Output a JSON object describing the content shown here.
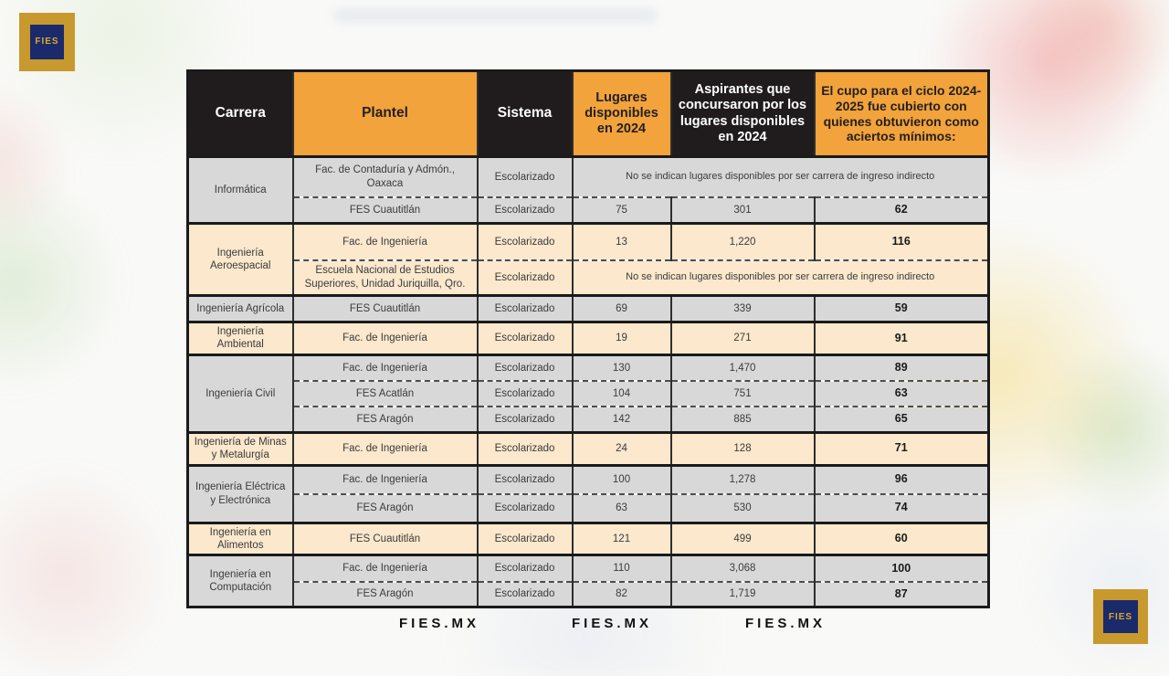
{
  "logo": {
    "text": "FIES"
  },
  "footer": {
    "items": [
      "FIES.MX",
      "FIES.MX",
      "FIES.MX"
    ]
  },
  "colors": {
    "accent_orange": "#F2A33B",
    "header_black": "#201C1D",
    "row_gray": "#D8D8D8",
    "row_cream": "#FBE8CD",
    "logo_gold": "#C8992E",
    "logo_navy": "#1B2A6B"
  },
  "table": {
    "headers": [
      {
        "key": "carrera",
        "label": "Carrera",
        "theme": "dark"
      },
      {
        "key": "plantel",
        "label": "Plantel",
        "theme": "orange"
      },
      {
        "key": "sistema",
        "label": "Sistema",
        "theme": "dark"
      },
      {
        "key": "lugares",
        "label": "Lugares disponibles en 2024",
        "theme": "orange"
      },
      {
        "key": "aspirantes",
        "label": "Aspirantes que concursaron por los lugares disponibles en 2024",
        "theme": "dark"
      },
      {
        "key": "aciertos",
        "label": "El cupo para el ciclo 2024-2025 fue cubierto con quienes obtuvieron como aciertos mínimos:",
        "theme": "orange"
      }
    ],
    "groups": [
      {
        "carrera": "Informática",
        "tone": "gray",
        "rows": [
          {
            "plantel": "Fac. de Contaduría y Admón., Oaxaca",
            "sistema": "Escolarizado",
            "note": "No se indican lugares disponibles por ser carrera de ingreso indirecto"
          },
          {
            "plantel": "FES Cuautitlán",
            "sistema": "Escolarizado",
            "lugares": "75",
            "aspirantes": "301",
            "aciertos": "62"
          }
        ]
      },
      {
        "carrera": "Ingeniería Aeroespacial",
        "tone": "cream",
        "rows": [
          {
            "plantel": "Fac. de Ingeniería",
            "sistema": "Escolarizado",
            "lugares": "13",
            "aspirantes": "1,220",
            "aciertos": "116"
          },
          {
            "plantel": "Escuela Nacional de Estudios Superiores, Unidad Juriquilla, Qro.",
            "sistema": "Escolarizado",
            "note": "No se indican lugares disponibles por ser carrera de ingreso indirecto"
          }
        ]
      },
      {
        "carrera": "Ingeniería Agrícola",
        "tone": "gray",
        "rows": [
          {
            "plantel": "FES Cuautitlán",
            "sistema": "Escolarizado",
            "lugares": "69",
            "aspirantes": "339",
            "aciertos": "59"
          }
        ]
      },
      {
        "carrera": "Ingeniería Ambiental",
        "tone": "cream",
        "rows": [
          {
            "plantel": "Fac. de Ingeniería",
            "sistema": "Escolarizado",
            "lugares": "19",
            "aspirantes": "271",
            "aciertos": "91"
          }
        ]
      },
      {
        "carrera": "Ingeniería Civil",
        "tone": "gray",
        "rows": [
          {
            "plantel": "Fac. de Ingeniería",
            "sistema": "Escolarizado",
            "lugares": "130",
            "aspirantes": "1,470",
            "aciertos": "89"
          },
          {
            "plantel": "FES Acatlán",
            "sistema": "Escolarizado",
            "lugares": "104",
            "aspirantes": "751",
            "aciertos": "63"
          },
          {
            "plantel": "FES Aragón",
            "sistema": "Escolarizado",
            "lugares": "142",
            "aspirantes": "885",
            "aciertos": "65"
          }
        ]
      },
      {
        "carrera": "Ingeniería de Minas y Metalurgía",
        "tone": "cream",
        "rows": [
          {
            "plantel": "Fac. de Ingeniería",
            "sistema": "Escolarizado",
            "lugares": "24",
            "aspirantes": "128",
            "aciertos": "71"
          }
        ]
      },
      {
        "carrera": "Ingeniería Eléctrica y Electrónica",
        "tone": "gray",
        "rows": [
          {
            "plantel": "Fac. de Ingeniería",
            "sistema": "Escolarizado",
            "lugares": "100",
            "aspirantes": "1,278",
            "aciertos": "96"
          },
          {
            "plantel": "FES Aragón",
            "sistema": "Escolarizado",
            "lugares": "63",
            "aspirantes": "530",
            "aciertos": "74"
          }
        ]
      },
      {
        "carrera": "Ingeniería en Alimentos",
        "tone": "cream",
        "rows": [
          {
            "plantel": "FES Cuautitlán",
            "sistema": "Escolarizado",
            "lugares": "121",
            "aspirantes": "499",
            "aciertos": "60"
          }
        ]
      },
      {
        "carrera": "Ingeniería en Computación",
        "tone": "gray",
        "rows": [
          {
            "plantel": "Fac. de Ingeniería",
            "sistema": "Escolarizado",
            "lugares": "110",
            "aspirantes": "3,068",
            "aciertos": "100"
          },
          {
            "plantel": "FES Aragón",
            "sistema": "Escolarizado",
            "lugares": "82",
            "aspirantes": "1,719",
            "aciertos": "87"
          }
        ]
      }
    ]
  }
}
